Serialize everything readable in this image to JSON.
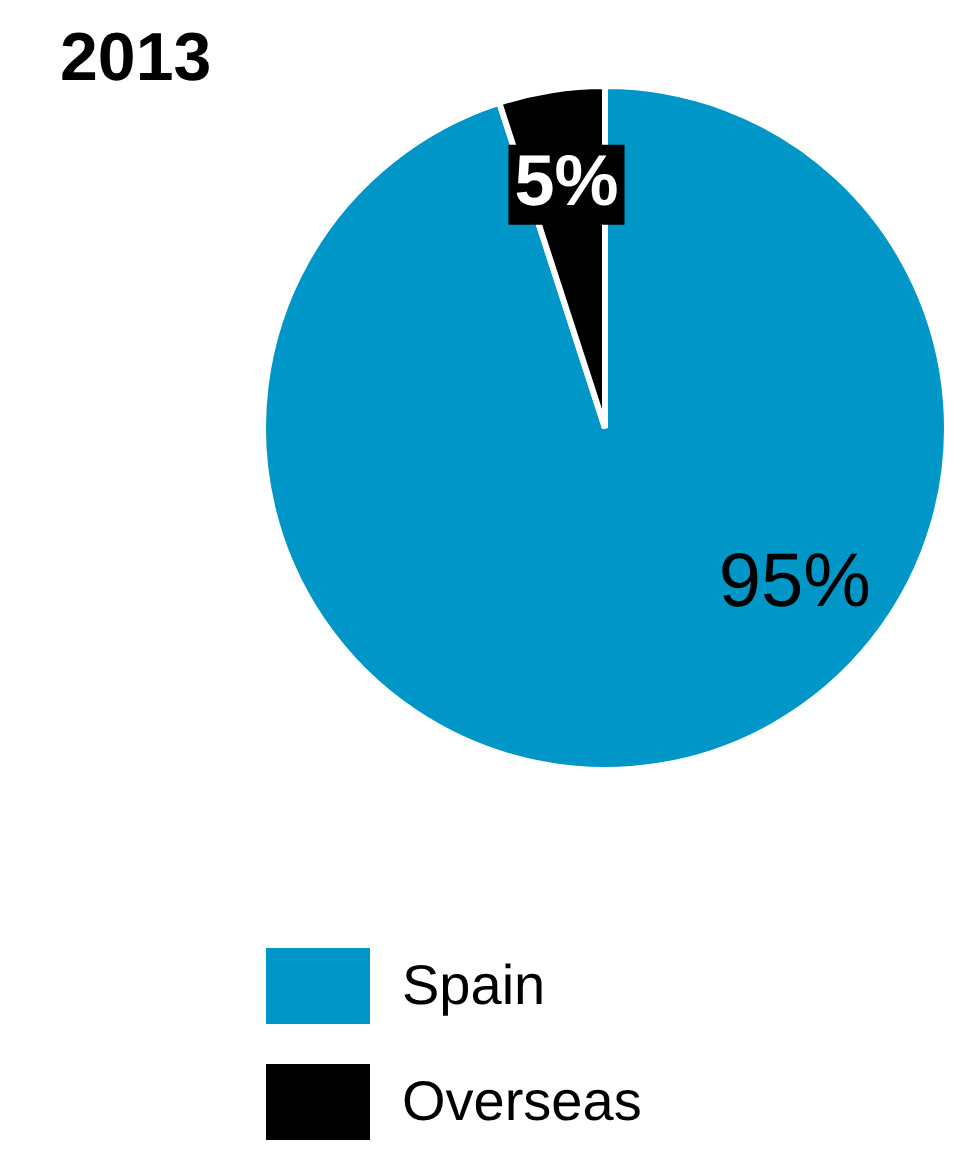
{
  "chart_data": {
    "type": "pie",
    "title": "2013",
    "categories": [
      "Spain",
      "Overseas"
    ],
    "values": [
      95,
      5
    ],
    "colors": [
      "#0096c8",
      "#000000"
    ],
    "value_labels": [
      "95%",
      "5%"
    ],
    "legend": "bottom"
  }
}
